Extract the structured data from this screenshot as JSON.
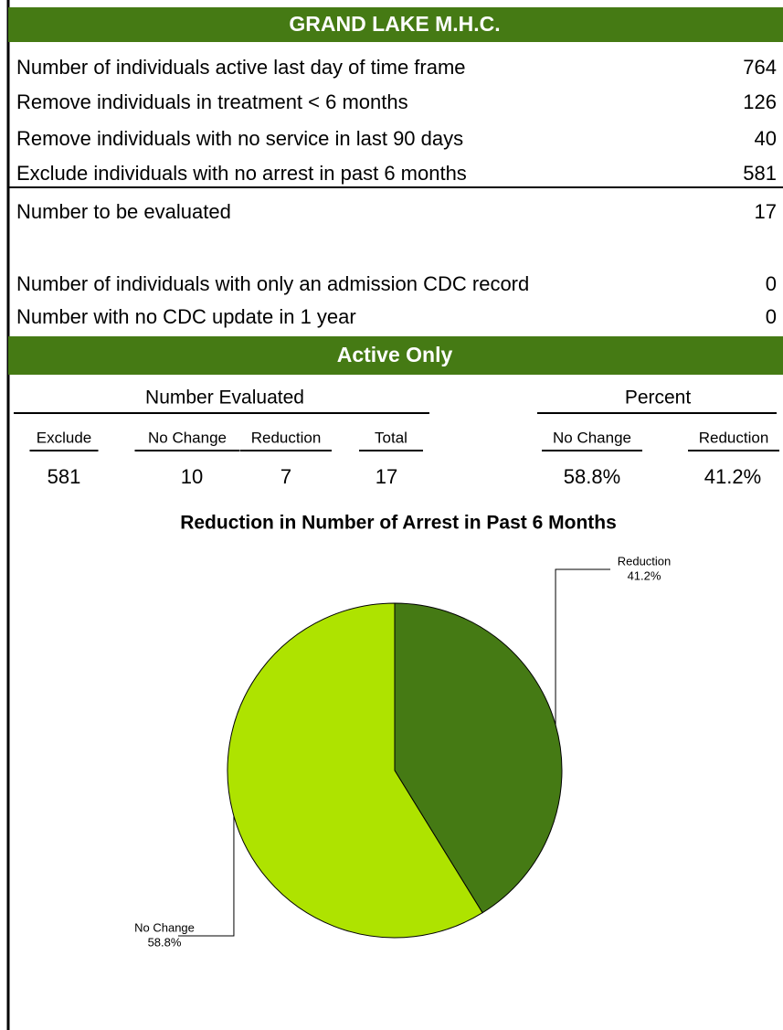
{
  "header": {
    "title": "GRAND LAKE M.H.C."
  },
  "rows": [
    {
      "label": "Number of individuals active last day of time frame",
      "value": 764
    },
    {
      "label": "Remove individuals in treatment < 6 months",
      "value": 126
    },
    {
      "label": "Remove individuals with no service in last 90 days",
      "value": 40
    },
    {
      "label": "Exclude individuals with no arrest in past 6 months",
      "value": 581
    }
  ],
  "total": {
    "label": "Number to be evaluated",
    "value": 17
  },
  "cdc_rows": [
    {
      "label": "Number of individuals with only an admission CDC record",
      "value": 0
    },
    {
      "label": "Number with no CDC update in 1 year",
      "value": 0
    }
  ],
  "section": {
    "title": "Active Only"
  },
  "table": {
    "group_evaluated": "Number Evaluated",
    "group_percent": "Percent",
    "columns": [
      "Exclude",
      "No Change",
      "Reduction",
      "Total",
      "No Change",
      "Reduction"
    ],
    "values": [
      581,
      10,
      7,
      17,
      "58.8%",
      "41.2%"
    ]
  },
  "chart_data": {
    "type": "pie",
    "title": "Reduction in Number of Arrest in Past 6 Months",
    "categories": [
      "Reduction",
      "No Change"
    ],
    "values": [
      41.2,
      58.8
    ],
    "value_labels": [
      "41.2%",
      "58.8%"
    ],
    "colors": [
      "#457a14",
      "#aee300"
    ]
  }
}
